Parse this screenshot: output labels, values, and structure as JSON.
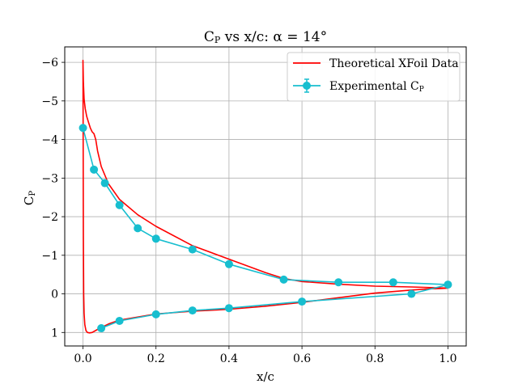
{
  "chart_data": {
    "type": "line",
    "title": "C",
    "title_sub": "P",
    "title_rest": " vs x/c: α = 14°",
    "xlabel": "x/c",
    "ylabel": "C",
    "ylabel_sub": "P",
    "xlim": [
      -0.05,
      1.05
    ],
    "ylim": [
      1.35,
      -6.4
    ],
    "y_inverted": true,
    "x_ticks": [
      0.0,
      0.2,
      0.4,
      0.6,
      0.8,
      1.0
    ],
    "x_tick_labels": [
      "0.0",
      "0.2",
      "0.4",
      "0.6",
      "0.8",
      "1.0"
    ],
    "y_ticks": [
      -6,
      -5,
      -4,
      -3,
      -2,
      -1,
      0,
      1
    ],
    "y_tick_labels": [
      "−6",
      "−5",
      "−4",
      "−3",
      "−2",
      "−1",
      "0",
      "1"
    ],
    "grid": true,
    "legend_position": "top-right",
    "series": [
      {
        "name": "Theoretical XFoil Data",
        "color": "#ff0000",
        "marker": "none",
        "x": [
          1.0,
          0.9,
          0.8,
          0.7,
          0.6,
          0.55,
          0.5,
          0.4,
          0.3,
          0.2,
          0.15,
          0.1,
          0.07,
          0.05,
          0.04,
          0.035,
          0.03,
          0.025,
          0.02,
          0.015,
          0.01,
          0.006,
          0.003,
          0.001,
          0.0,
          0.0005,
          0.001,
          0.002,
          0.003,
          0.005,
          0.008,
          0.012,
          0.018,
          0.025,
          0.04,
          0.07,
          0.1,
          0.2,
          0.3,
          0.4,
          0.5,
          0.6,
          0.7,
          0.8,
          0.9,
          0.95,
          0.98,
          1.0
        ],
        "y": [
          -0.15,
          -0.18,
          -0.2,
          -0.25,
          -0.32,
          -0.4,
          -0.55,
          -0.9,
          -1.25,
          -1.75,
          -2.05,
          -2.45,
          -2.85,
          -3.3,
          -3.7,
          -4.0,
          -4.15,
          -4.2,
          -4.3,
          -4.45,
          -4.6,
          -4.8,
          -5.05,
          -5.5,
          -6.05,
          -3.5,
          -1.5,
          0.0,
          0.5,
          0.8,
          0.95,
          1.0,
          1.01,
          1.0,
          0.92,
          0.78,
          0.68,
          0.52,
          0.45,
          0.4,
          0.32,
          0.22,
          0.1,
          -0.02,
          -0.1,
          -0.13,
          -0.14,
          -0.15
        ]
      },
      {
        "name": "Experimental C",
        "name_sub": "P",
        "color": "#17becf",
        "marker": "circle",
        "error_bars": true,
        "x": [
          0.0,
          0.03,
          0.06,
          0.1,
          0.15,
          0.2,
          0.3,
          0.4,
          0.55,
          0.7,
          0.85,
          1.0,
          0.9,
          0.6,
          0.4,
          0.3,
          0.2,
          0.1,
          0.05
        ],
        "y": [
          -4.3,
          -3.22,
          -2.87,
          -2.3,
          -1.7,
          -1.43,
          -1.15,
          -0.77,
          -0.37,
          -0.3,
          -0.3,
          -0.24,
          0.0,
          0.2,
          0.37,
          0.43,
          0.53,
          0.7,
          0.89
        ]
      }
    ]
  }
}
